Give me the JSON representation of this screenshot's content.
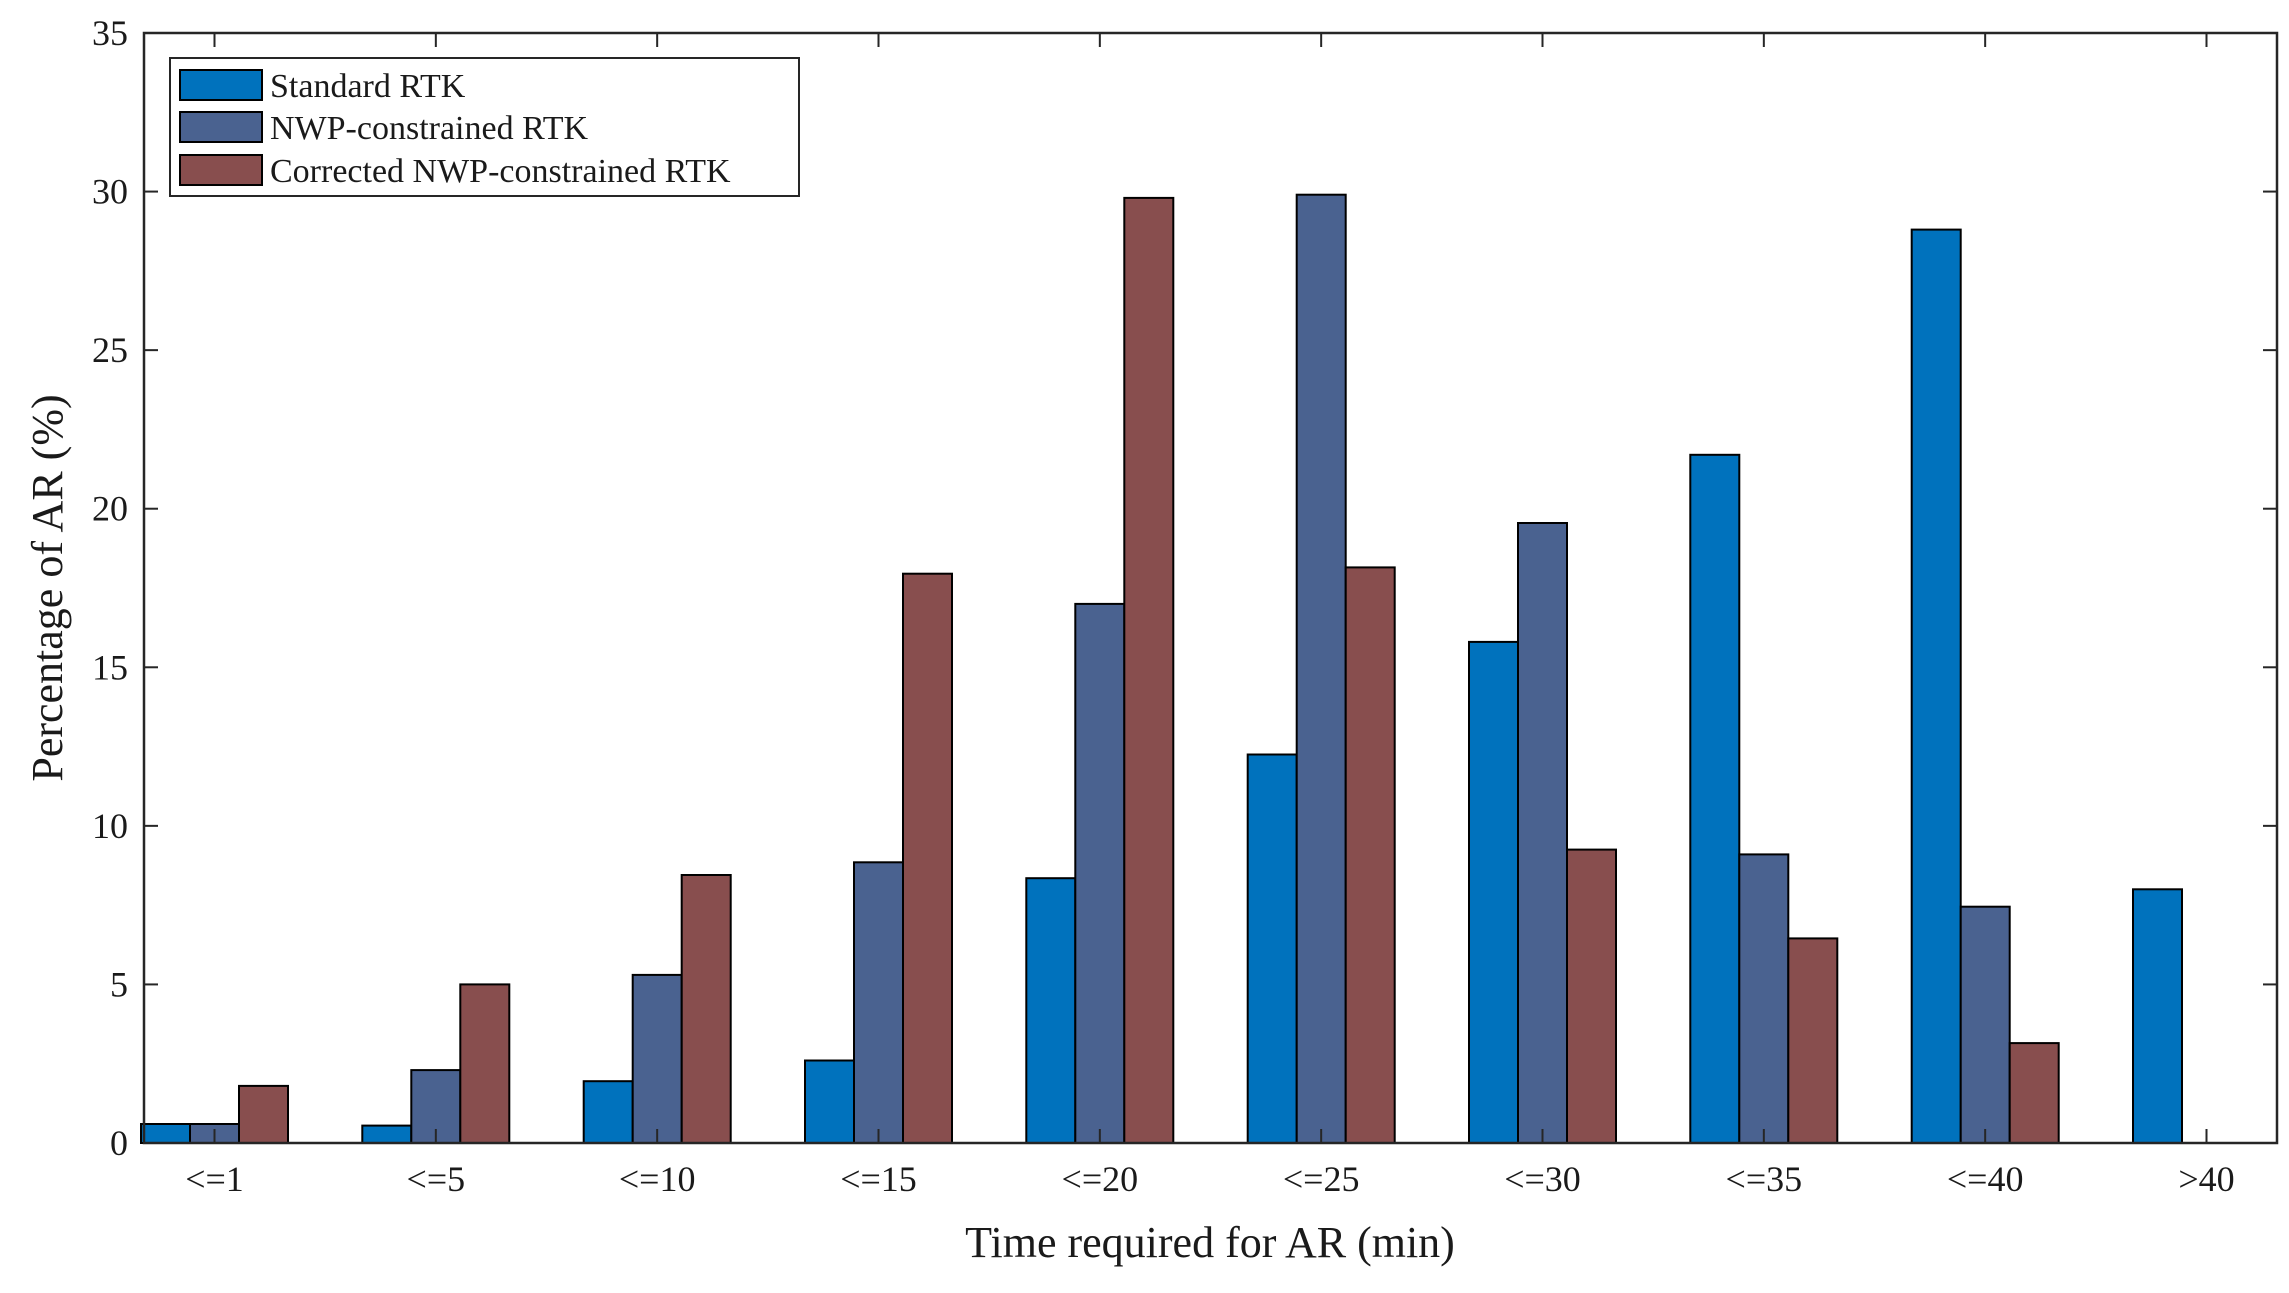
{
  "chart_data": {
    "type": "bar",
    "title": "",
    "xlabel": "Time required for AR (min)",
    "ylabel": "Percentage of AR (%)",
    "ylim": [
      0,
      35
    ],
    "yticks": [
      "0",
      "5",
      "10",
      "15",
      "20",
      "25",
      "30",
      "35"
    ],
    "categories": [
      "<=1",
      "<=5",
      "<=10",
      "<=15",
      "<=20",
      "<=25",
      "<=30",
      "<=35",
      "<=40",
      ">40"
    ],
    "series": [
      {
        "name": "Standard RTK",
        "color": "#0072BD",
        "values": [
          0.6,
          0.55,
          1.95,
          2.6,
          8.35,
          12.25,
          15.8,
          21.7,
          28.8,
          8.0
        ]
      },
      {
        "name": "NWP-constrained RTK",
        "color": "#4A6290",
        "values": [
          0.6,
          2.3,
          5.3,
          8.85,
          17.0,
          29.9,
          19.55,
          9.1,
          7.45,
          0.0
        ]
      },
      {
        "name": "Corrected NWP-constrained RTK",
        "color": "#884E4E",
        "values": [
          1.8,
          5.0,
          8.45,
          17.95,
          29.8,
          18.15,
          9.25,
          6.45,
          3.15,
          0.0
        ]
      }
    ],
    "grid": false,
    "legend_position": "top-left"
  }
}
